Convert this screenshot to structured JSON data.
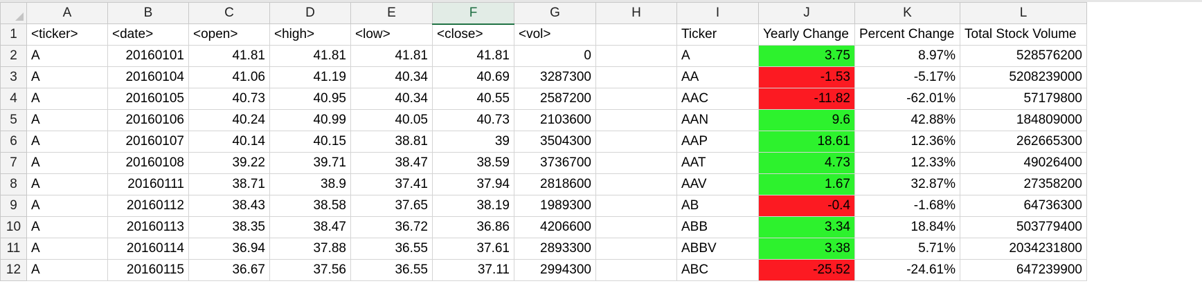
{
  "columns": [
    "A",
    "B",
    "C",
    "D",
    "E",
    "F",
    "G",
    "H",
    "I",
    "J",
    "K",
    "L"
  ],
  "active_column": "F",
  "colors": {
    "positive": "#2df22d",
    "negative": "#fc1a22",
    "active_header": "#1f7244"
  },
  "rows": [
    {
      "n": "1",
      "a": "<ticker>",
      "b": "<date>",
      "c": "<open>",
      "d": "<high>",
      "e": "<low>",
      "f": "<close>",
      "g": "<vol>",
      "h": "",
      "i": "Ticker",
      "j": "Yearly Change",
      "k": "Percent Change",
      "l": "Total Stock Volume"
    },
    {
      "n": "2",
      "a": "A",
      "b": "20160101",
      "c": "41.81",
      "d": "41.81",
      "e": "41.81",
      "f": "41.81",
      "g": "0",
      "h": "",
      "i": "A",
      "j": "3.75",
      "k": "8.97%",
      "l": "528576200"
    },
    {
      "n": "3",
      "a": "A",
      "b": "20160104",
      "c": "41.06",
      "d": "41.19",
      "e": "40.34",
      "f": "40.69",
      "g": "3287300",
      "h": "",
      "i": "AA",
      "j": "-1.53",
      "k": "-5.17%",
      "l": "5208239000"
    },
    {
      "n": "4",
      "a": "A",
      "b": "20160105",
      "c": "40.73",
      "d": "40.95",
      "e": "40.34",
      "f": "40.55",
      "g": "2587200",
      "h": "",
      "i": "AAC",
      "j": "-11.82",
      "k": "-62.01%",
      "l": "57179800"
    },
    {
      "n": "5",
      "a": "A",
      "b": "20160106",
      "c": "40.24",
      "d": "40.99",
      "e": "40.05",
      "f": "40.73",
      "g": "2103600",
      "h": "",
      "i": "AAN",
      "j": "9.6",
      "k": "42.88%",
      "l": "184809000"
    },
    {
      "n": "6",
      "a": "A",
      "b": "20160107",
      "c": "40.14",
      "d": "40.15",
      "e": "38.81",
      "f": "39",
      "g": "3504300",
      "h": "",
      "i": "AAP",
      "j": "18.61",
      "k": "12.36%",
      "l": "262665300"
    },
    {
      "n": "7",
      "a": "A",
      "b": "20160108",
      "c": "39.22",
      "d": "39.71",
      "e": "38.47",
      "f": "38.59",
      "g": "3736700",
      "h": "",
      "i": "AAT",
      "j": "4.73",
      "k": "12.33%",
      "l": "49026400"
    },
    {
      "n": "8",
      "a": "A",
      "b": "20160111",
      "c": "38.71",
      "d": "38.9",
      "e": "37.41",
      "f": "37.94",
      "g": "2818600",
      "h": "",
      "i": "AAV",
      "j": "1.67",
      "k": "32.87%",
      "l": "27358200"
    },
    {
      "n": "9",
      "a": "A",
      "b": "20160112",
      "c": "38.43",
      "d": "38.58",
      "e": "37.65",
      "f": "38.19",
      "g": "1989300",
      "h": "",
      "i": "AB",
      "j": "-0.4",
      "k": "-1.68%",
      "l": "64736300"
    },
    {
      "n": "10",
      "a": "A",
      "b": "20160113",
      "c": "38.35",
      "d": "38.47",
      "e": "36.72",
      "f": "36.86",
      "g": "4206600",
      "h": "",
      "i": "ABB",
      "j": "3.34",
      "k": "18.84%",
      "l": "503779400"
    },
    {
      "n": "11",
      "a": "A",
      "b": "20160114",
      "c": "36.94",
      "d": "37.88",
      "e": "36.55",
      "f": "37.61",
      "g": "2893300",
      "h": "",
      "i": "ABBV",
      "j": "3.38",
      "k": "5.71%",
      "l": "2034231800"
    },
    {
      "n": "12",
      "a": "A",
      "b": "20160115",
      "c": "36.67",
      "d": "37.56",
      "e": "36.55",
      "f": "37.11",
      "g": "2994300",
      "h": "",
      "i": "ABC",
      "j": "-25.52",
      "k": "-24.61%",
      "l": "647239900"
    }
  ]
}
